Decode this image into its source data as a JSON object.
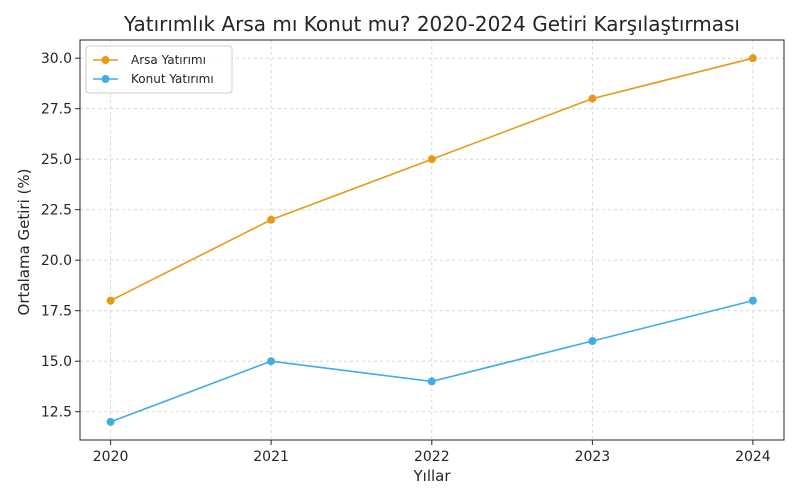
{
  "chart_data": {
    "type": "line",
    "title": "Yatırımlık Arsa mı Konut mu? 2020-2024 Getiri Karşılaştırması",
    "xlabel": "Yıllar",
    "ylabel": "Ortalama Getiri (%)",
    "x": [
      "2020",
      "2021",
      "2022",
      "2023",
      "2024"
    ],
    "ylim": [
      11.1,
      30.9
    ],
    "yticks": [
      "12.5",
      "15.0",
      "17.5",
      "20.0",
      "22.5",
      "25.0",
      "27.5",
      "30.0"
    ],
    "grid": true,
    "legend_position": "top-left",
    "series": [
      {
        "name": "Arsa Yatırımı",
        "color": "#E69A18",
        "values": [
          18,
          22,
          25,
          28,
          30
        ],
        "marker": "circle"
      },
      {
        "name": "Konut Yatırımı",
        "color": "#42ACE5",
        "values": [
          12,
          15,
          14,
          16,
          18
        ],
        "marker": "circle"
      }
    ]
  }
}
